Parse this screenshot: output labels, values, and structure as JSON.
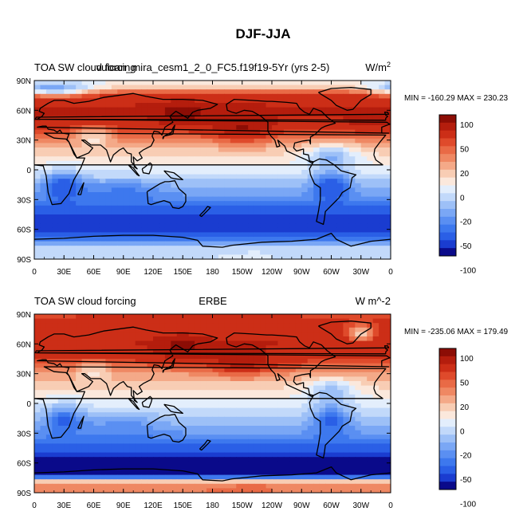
{
  "figure": {
    "title": "DJF-JJA",
    "panels": [
      {
        "left_title": "TOA SW cloud forcing",
        "center_title": "vulcan_mira_cesm1_2_0_FC5.f19f19-5Yr (yrs 2-5)",
        "right_units": "W/m",
        "right_units_sup": "2",
        "stats": "MIN = -160.29 MAX = 230.23",
        "pattern": "model"
      },
      {
        "left_title": "TOA SW cloud forcing",
        "center_title": "ERBE",
        "right_units": "W m^-2",
        "right_units_sup": "",
        "stats": "MIN = -235.06 MAX = 179.49",
        "pattern": "obs"
      }
    ]
  },
  "chart_data": {
    "type": "heatmap",
    "title": "DJF-JJA",
    "variable": "TOA SW cloud forcing",
    "x_ticks": [
      "0",
      "30E",
      "60E",
      "90E",
      "120E",
      "150E",
      "180",
      "150W",
      "120W",
      "90W",
      "60W",
      "30W",
      "0"
    ],
    "y_ticks": [
      "90N",
      "60N",
      "30N",
      "0",
      "30S",
      "60S",
      "90S"
    ],
    "xlim": [
      0,
      360
    ],
    "ylim": [
      -90,
      90
    ],
    "colorbar": {
      "levels": [
        -120,
        -100,
        -80,
        -60,
        -50,
        -40,
        -30,
        -20,
        -10,
        0,
        10,
        20,
        30,
        40,
        50,
        60,
        80,
        100,
        120
      ],
      "tick_labels": [
        "100",
        "50",
        "20",
        "0",
        "-20",
        "-50",
        "-100"
      ],
      "colors": [
        "#0a0a8a",
        "#1a3cd0",
        "#2a5fe6",
        "#3d78ee",
        "#5a8ff2",
        "#7aa7f5",
        "#9dc0f7",
        "#c2d9fa",
        "#e3eefc",
        "#fbe8dc",
        "#f8cdb4",
        "#f4a988",
        "#ef8863",
        "#e96a46",
        "#df4a2b",
        "#cc2e17",
        "#b41d0d",
        "#8c0d05"
      ]
    },
    "series": [
      {
        "name": "vulcan_mira_cesm1_2_0_FC5.f19f19-5Yr (yrs 2-5)",
        "min": -160.29,
        "max": 230.23,
        "zonal_profile": [
          {
            "lat": 85,
            "value": 5
          },
          {
            "lat": 75,
            "value": 70
          },
          {
            "lat": 60,
            "value": 85
          },
          {
            "lat": 45,
            "value": 70
          },
          {
            "lat": 30,
            "value": 35
          },
          {
            "lat": 15,
            "value": 10
          },
          {
            "lat": 0,
            "value": -5
          },
          {
            "lat": -15,
            "value": -25
          },
          {
            "lat": -30,
            "value": -45
          },
          {
            "lat": -45,
            "value": -80
          },
          {
            "lat": -55,
            "value": -95
          },
          {
            "lat": -65,
            "value": -70
          },
          {
            "lat": -80,
            "value": -10
          }
        ]
      },
      {
        "name": "ERBE",
        "min": -235.06,
        "max": 179.49,
        "zonal_profile": [
          {
            "lat": 85,
            "value": 60
          },
          {
            "lat": 75,
            "value": 70
          },
          {
            "lat": 60,
            "value": 80
          },
          {
            "lat": 45,
            "value": 65
          },
          {
            "lat": 30,
            "value": 30
          },
          {
            "lat": 15,
            "value": 10
          },
          {
            "lat": 0,
            "value": -5
          },
          {
            "lat": -15,
            "value": -20
          },
          {
            "lat": -30,
            "value": -40
          },
          {
            "lat": -45,
            "value": -70
          },
          {
            "lat": -60,
            "value": -110
          },
          {
            "lat": -70,
            "value": -120
          },
          {
            "lat": -80,
            "value": 40
          }
        ]
      }
    ]
  }
}
